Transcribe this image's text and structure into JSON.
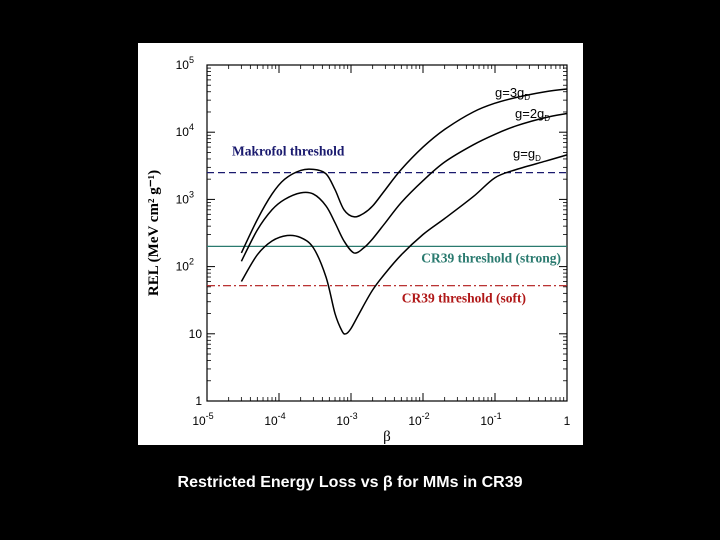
{
  "caption": "Restricted Energy Loss vs β for MMs in CR39",
  "chart_data": {
    "type": "line",
    "title": "",
    "xlabel": "β",
    "ylabel": "REL (MeV cm² g⁻¹)",
    "xscale": "log",
    "yscale": "log",
    "xlim": [
      1e-05,
      1
    ],
    "ylim": [
      1,
      100000
    ],
    "x_ticks": [
      {
        "value": 1e-05,
        "base": "10",
        "exp": "-5"
      },
      {
        "value": 0.0001,
        "base": "10",
        "exp": "-4"
      },
      {
        "value": 0.001,
        "base": "10",
        "exp": "-3"
      },
      {
        "value": 0.01,
        "base": "10",
        "exp": "-2"
      },
      {
        "value": 0.1,
        "base": "10",
        "exp": "-1"
      },
      {
        "value": 1,
        "base": "1",
        "exp": ""
      }
    ],
    "y_ticks": [
      {
        "value": 1,
        "base": "1",
        "exp": ""
      },
      {
        "value": 10,
        "base": "10",
        "exp": ""
      },
      {
        "value": 100,
        "base": "10",
        "exp": "2"
      },
      {
        "value": 1000,
        "base": "10",
        "exp": "3"
      },
      {
        "value": 10000,
        "base": "10",
        "exp": "4"
      },
      {
        "value": 100000,
        "base": "10",
        "exp": "5"
      }
    ],
    "series": [
      {
        "name": "g=g_D",
        "label_main": "g=g",
        "label_sub": "D",
        "x": [
          3e-05,
          5e-05,
          8e-05,
          0.00013,
          0.0002,
          0.0003,
          0.00045,
          0.0006,
          0.00075,
          0.00085,
          0.001,
          0.0013,
          0.002,
          0.003,
          0.005,
          0.01,
          0.02,
          0.05,
          0.1,
          0.2,
          0.5,
          1
        ],
        "y": [
          60,
          150,
          240,
          290,
          270,
          190,
          70,
          20,
          11,
          10,
          12,
          20,
          45,
          80,
          150,
          300,
          520,
          1100,
          2100,
          2800,
          3700,
          4600
        ]
      },
      {
        "name": "g=2g_D",
        "label_main": "g=2g",
        "label_sub": "D",
        "x": [
          3e-05,
          5e-05,
          8e-05,
          0.00012,
          0.0002,
          0.0003,
          0.00045,
          0.0006,
          0.0008,
          0.0011,
          0.0015,
          0.002,
          0.003,
          0.005,
          0.01,
          0.02,
          0.05,
          0.1,
          0.2,
          0.5,
          1
        ],
        "y": [
          120,
          350,
          700,
          1000,
          1250,
          1200,
          800,
          450,
          240,
          160,
          190,
          260,
          450,
          900,
          1900,
          3600,
          6500,
          9300,
          12500,
          16500,
          19000
        ]
      },
      {
        "name": "g=3g_D",
        "label_main": "g=3g",
        "label_sub": "D",
        "x": [
          3e-05,
          5e-05,
          8e-05,
          0.00012,
          0.0002,
          0.0003,
          0.00045,
          0.0006,
          0.0008,
          0.0011,
          0.0015,
          0.002,
          0.003,
          0.005,
          0.01,
          0.02,
          0.05,
          0.1,
          0.2,
          0.5,
          1
        ],
        "y": [
          160,
          500,
          1200,
          2000,
          2700,
          2800,
          2400,
          1400,
          700,
          550,
          620,
          800,
          1400,
          2800,
          6000,
          11000,
          20000,
          27000,
          33000,
          40000,
          44000
        ]
      }
    ],
    "thresholds": [
      {
        "name": "Makrofol threshold",
        "y": 2500,
        "color": "#1a1a6e",
        "dash": "dashed"
      },
      {
        "name": "CR39 threshold (strong)",
        "y": 200,
        "color": "#2a7a6f",
        "dash": "solid"
      },
      {
        "name": "CR39 threshold (soft)",
        "y": 52,
        "color": "#b01818",
        "dash": "dashdot"
      }
    ]
  }
}
